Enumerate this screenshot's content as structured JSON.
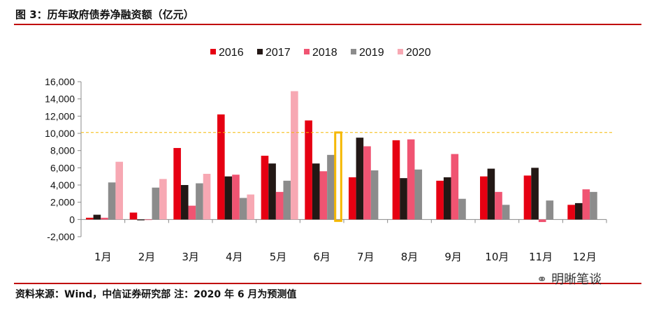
{
  "header": {
    "title": "图 3：历年政府债券净融资额（亿元）"
  },
  "footer": {
    "source": "资料来源：Wind，中信证券研究部 注：2020 年 6 月为预测值",
    "watermark": "明晰笔谈",
    "watermark_icon": "wechat-icon"
  },
  "colors": {
    "s2016": "#e60012",
    "s2017": "#231815",
    "s2018": "#f05472",
    "s2019": "#8c8c8c",
    "s2020": "#f7a8b3",
    "highlight": "#f5b800",
    "reference_line": "#f5b800",
    "rule": "#c00000"
  },
  "chart_data": {
    "type": "bar",
    "title": "",
    "xlabel": "",
    "ylabel": "",
    "ylim": [
      -2000,
      16000
    ],
    "yticks": [
      -2000,
      0,
      2000,
      4000,
      6000,
      8000,
      10000,
      12000,
      14000,
      16000
    ],
    "ytick_labels": [
      "-2,000",
      "0",
      "2,000",
      "4,000",
      "6,000",
      "8,000",
      "10,000",
      "12,000",
      "14,000",
      "16,000"
    ],
    "categories": [
      "1月",
      "2月",
      "3月",
      "4月",
      "5月",
      "6月",
      "7月",
      "8月",
      "9月",
      "10月",
      "11月",
      "12月"
    ],
    "legend_position": "top-center",
    "grid": false,
    "reference_line": {
      "y": 10100,
      "style": "dashed"
    },
    "highlight": {
      "category": "6月",
      "series": "2020",
      "value": 10100,
      "style": "outline"
    },
    "series": [
      {
        "name": "2016",
        "values": [
          200,
          800,
          8300,
          12200,
          7400,
          11500,
          4900,
          9200,
          4500,
          5000,
          5100,
          1700
        ]
      },
      {
        "name": "2017",
        "values": [
          550,
          -100,
          4000,
          5000,
          6500,
          6500,
          9500,
          4800,
          4900,
          5900,
          6000,
          1900
        ]
      },
      {
        "name": "2018",
        "values": [
          200,
          0,
          1600,
          5200,
          3200,
          5600,
          8500,
          9300,
          7600,
          3200,
          -300,
          3500
        ]
      },
      {
        "name": "2019",
        "values": [
          4300,
          3700,
          4200,
          2500,
          4500,
          7500,
          5700,
          5800,
          2400,
          1700,
          2200,
          3200
        ]
      },
      {
        "name": "2020",
        "values": [
          6700,
          4700,
          5300,
          2900,
          14900,
          null,
          null,
          null,
          null,
          null,
          null,
          null
        ]
      }
    ]
  }
}
